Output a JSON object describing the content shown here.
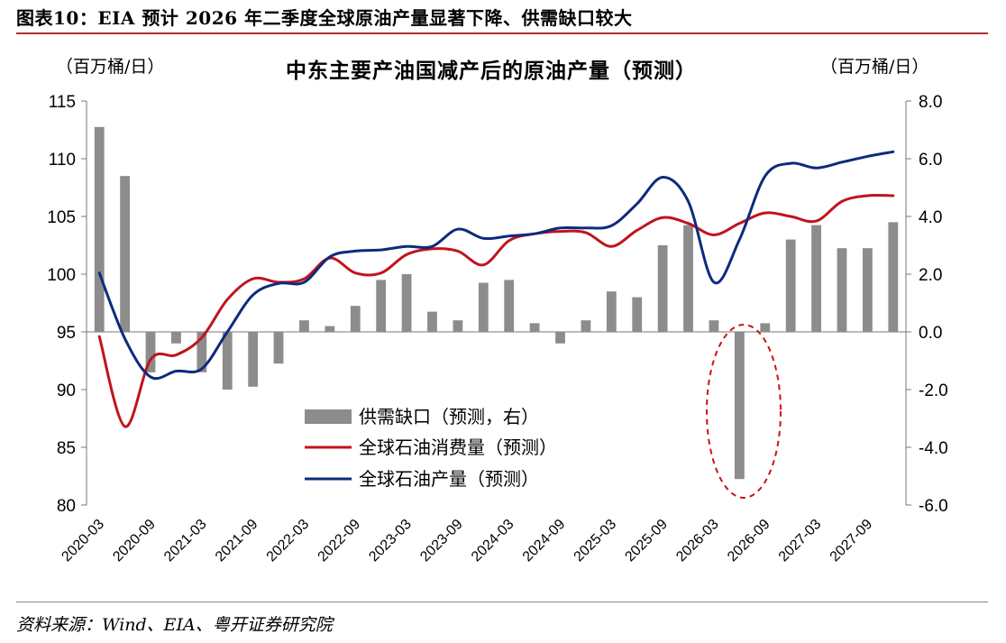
{
  "header": {
    "figure_title": "图表10：EIA 预计 2026 年二季度全球原油产量显著下降、供需缺口较大",
    "source": "资料来源：Wind、EIA、粤开证券研究院"
  },
  "chart_data": {
    "type": "bar+line",
    "title": "中东主要产油国减产后的原油产量（预测）",
    "left_unit": "（百万桶/日）",
    "right_unit": "（百万桶/日）",
    "left_ylim": [
      80,
      115
    ],
    "left_ticks": [
      "115",
      "110",
      "105",
      "100",
      "95",
      "90",
      "85",
      "80"
    ],
    "right_ylim": [
      -6,
      8
    ],
    "right_ticks": [
      "8.0",
      "6.0",
      "4.0",
      "2.0",
      "0.0",
      "-2.0",
      "-4.0",
      "-6.0"
    ],
    "x_tick_labels": [
      "2020-03",
      "2020-09",
      "2021-03",
      "2021-09",
      "2022-03",
      "2022-09",
      "2023-03",
      "2023-09",
      "2024-03",
      "2024-09",
      "2025-03",
      "2025-09",
      "2026-03",
      "2026-09",
      "2027-03",
      "2027-09"
    ],
    "categories": [
      "2020Q1",
      "2020Q2",
      "2020Q3",
      "2020Q4",
      "2021Q1",
      "2021Q2",
      "2021Q3",
      "2021Q4",
      "2022Q1",
      "2022Q2",
      "2022Q3",
      "2022Q4",
      "2023Q1",
      "2023Q2",
      "2023Q3",
      "2023Q4",
      "2024Q1",
      "2024Q2",
      "2024Q3",
      "2024Q4",
      "2025Q1",
      "2025Q2",
      "2025Q3",
      "2025Q4",
      "2026Q1",
      "2026Q2",
      "2026Q3",
      "2026Q4",
      "2027Q1",
      "2027Q2",
      "2027Q3",
      "2027Q4"
    ],
    "series": [
      {
        "name": "供需缺口（预测，右）",
        "type": "bar",
        "axis": "right",
        "color": "#8c8c8c",
        "values": [
          7.1,
          5.4,
          -1.4,
          -0.4,
          -1.4,
          -2.0,
          -1.9,
          -1.1,
          0.4,
          0.2,
          0.9,
          1.8,
          2.0,
          0.7,
          0.4,
          1.7,
          1.8,
          0.3,
          -0.4,
          0.4,
          1.4,
          1.2,
          3.0,
          3.7,
          0.4,
          -5.1,
          0.3,
          3.2,
          3.7,
          2.9,
          2.9,
          3.8
        ]
      },
      {
        "name": "全球石油消费量（预测）",
        "type": "line",
        "axis": "left",
        "color": "#c0141c",
        "values": [
          94.6,
          86.8,
          92.6,
          93.0,
          94.5,
          97.8,
          99.6,
          99.3,
          99.6,
          101.4,
          100.1,
          100.1,
          101.7,
          102.2,
          102.0,
          100.8,
          102.9,
          103.5,
          103.7,
          103.6,
          102.4,
          103.8,
          104.9,
          104.4,
          103.4,
          104.4,
          105.3,
          105.0,
          104.6,
          106.3,
          106.8,
          106.8
        ]
      },
      {
        "name": "全球石油产量（预测）",
        "type": "line",
        "axis": "left",
        "color": "#0c2b7c",
        "values": [
          100.1,
          94.4,
          91.1,
          91.6,
          91.8,
          95.0,
          98.2,
          99.2,
          99.3,
          101.5,
          102.0,
          102.1,
          102.4,
          102.4,
          103.9,
          103.1,
          103.3,
          103.5,
          104.0,
          104.0,
          104.2,
          106.1,
          108.4,
          106.3,
          99.3,
          103.0,
          108.5,
          109.6,
          109.2,
          109.7,
          110.2,
          110.6
        ]
      }
    ],
    "annotation": "dashed red ellipse highlighting 2026Q2 supply gap"
  }
}
